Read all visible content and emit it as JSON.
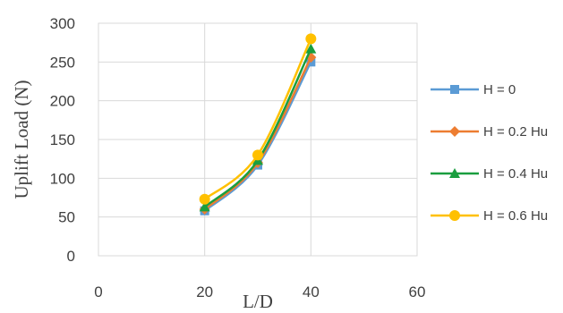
{
  "chart_data": {
    "type": "scatter",
    "xlabel": "L/D",
    "ylabel": "Uplift Load (N)",
    "xlim": [
      0,
      60
    ],
    "ylim": [
      0,
      300
    ],
    "xticks": [
      0,
      20,
      40,
      60
    ],
    "yticks": [
      0,
      50,
      100,
      150,
      200,
      250,
      300
    ],
    "grid": true,
    "legend_position": "right",
    "smooth_lines": true,
    "series": [
      {
        "name": "H = 0",
        "marker": "square",
        "color": "#5B9BD5",
        "x": [
          20,
          30,
          40
        ],
        "y": [
          58,
          117,
          250
        ]
      },
      {
        "name": "H = 0.2 Hu",
        "marker": "diamond",
        "color": "#ED7D31",
        "x": [
          20,
          30,
          40
        ],
        "y": [
          60,
          120,
          256
        ]
      },
      {
        "name": "H = 0.4 Hu",
        "marker": "triangle",
        "color": "#1A9E3F",
        "x": [
          20,
          30,
          40
        ],
        "y": [
          63,
          123,
          267
        ]
      },
      {
        "name": "H = 0.6 Hu",
        "marker": "circle",
        "color": "#FFC000",
        "x": [
          20,
          30,
          40
        ],
        "y": [
          73,
          130,
          280
        ]
      }
    ]
  }
}
